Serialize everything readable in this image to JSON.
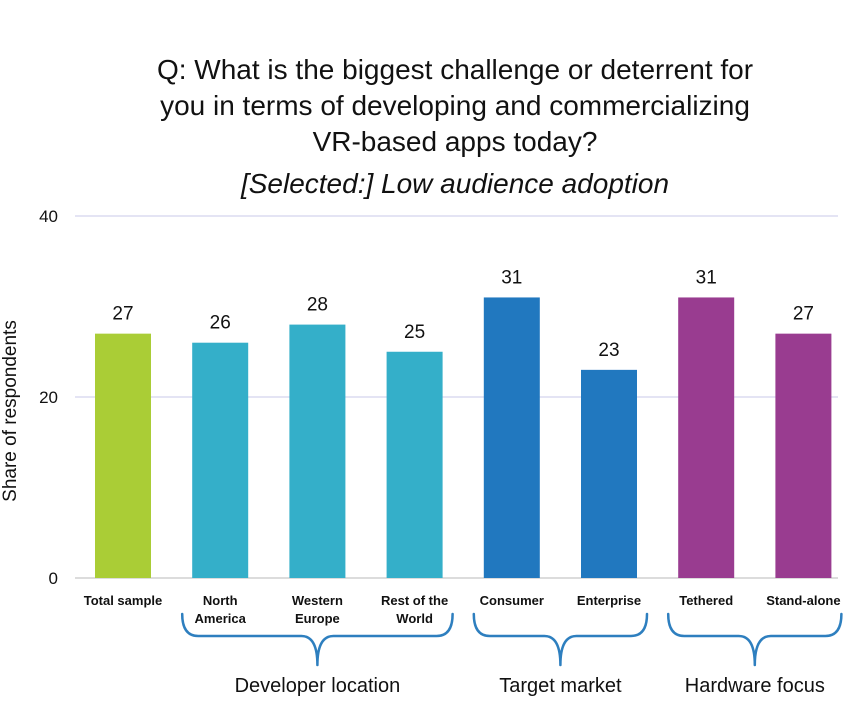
{
  "chart_data": {
    "type": "bar",
    "title_lines": [
      "Q: What is the biggest challenge or deterrent for",
      "you in terms of developing and commercializing",
      "VR-based apps today?"
    ],
    "subtitle": "[Selected:] Low audience adoption",
    "ylabel": "Share of respondents",
    "ylim": [
      0,
      40
    ],
    "yticks": [
      "0",
      "20",
      "40"
    ],
    "categories": [
      [
        "Total sample"
      ],
      [
        "North",
        "America"
      ],
      [
        "Western",
        "Europe"
      ],
      [
        "Rest of the",
        "World"
      ],
      [
        "Consumer"
      ],
      [
        "Enterprise"
      ],
      [
        "Tethered"
      ],
      [
        "Stand-alone"
      ]
    ],
    "values": [
      27,
      26,
      28,
      25,
      31,
      23,
      31,
      27
    ],
    "value_labels": [
      "27",
      "26",
      "28",
      "25",
      "31",
      "23",
      "31",
      "27"
    ],
    "colors": [
      "#aacd36",
      "#34afc9",
      "#34afc9",
      "#34afc9",
      "#2178bf",
      "#2178bf",
      "#993c90",
      "#993c90"
    ],
    "groups": [
      {
        "label": "Developer location",
        "start": 1,
        "end": 3
      },
      {
        "label": "Target market",
        "start": 4,
        "end": 5
      },
      {
        "label": "Hardware focus",
        "start": 6,
        "end": 7
      }
    ],
    "bracket_color": "#2e7fbf",
    "grid": true,
    "grid_color": "#d4d4ee"
  }
}
